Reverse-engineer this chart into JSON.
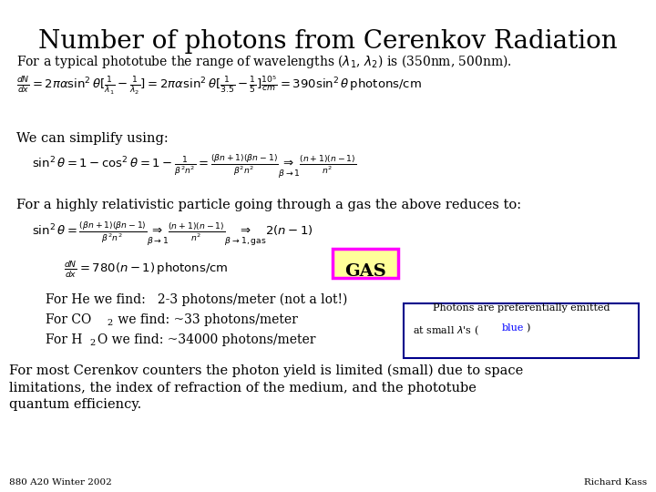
{
  "title": "Number of photons from Cerenkov Radiation",
  "bg_color": "#ffffff",
  "title_fontsize": 20,
  "footer_left": "880 A20 Winter 2002",
  "footer_right": "Richard Kass",
  "gas_box_color": "#ff00ff",
  "gas_fill_color": "#ffff99",
  "box_color": "#00008b",
  "blue_color": "#0000ff"
}
